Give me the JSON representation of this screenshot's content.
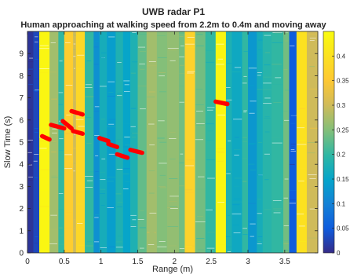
{
  "chart_data": {
    "type": "heatmap",
    "title": "UWB radar P1",
    "subtitle": "Human approaching at walking speed from 2.2m to 0.4m and moving away",
    "xlabel": "Range (m)",
    "ylabel": "Slow Time (s)",
    "xlim": [
      0,
      3.95
    ],
    "ylim": [
      0,
      10
    ],
    "x_ticks": [
      0,
      0.5,
      1,
      1.5,
      2,
      2.5,
      3,
      3.5
    ],
    "x_tick_labels": [
      "0",
      "0.5",
      "1",
      "1.5",
      "2",
      "2.5",
      "3",
      "3.5"
    ],
    "y_ticks": [
      0,
      1,
      2,
      3,
      4,
      5,
      6,
      7,
      8,
      9
    ],
    "y_tick_labels": [
      "0",
      "1",
      "2",
      "3",
      "4",
      "5",
      "6",
      "7",
      "8",
      "9"
    ],
    "colorbar": {
      "limits": [
        0,
        0.45
      ],
      "ticks": [
        0,
        0.05,
        0.1,
        0.15,
        0.2,
        0.25,
        0.3,
        0.35,
        0.4
      ],
      "tick_labels": [
        "0",
        "0.05",
        "0.1",
        "0.15",
        "0.2",
        "0.25",
        "0.3",
        "0.35",
        "0.4"
      ],
      "colormap": "parula"
    },
    "range_profile": [
      {
        "range": [
          0.0,
          0.08
        ],
        "value": 0.01
      },
      {
        "range": [
          0.08,
          0.16
        ],
        "value": 0.03
      },
      {
        "range": [
          0.16,
          0.3
        ],
        "value": 0.44
      },
      {
        "range": [
          0.3,
          0.42
        ],
        "value": 0.27
      },
      {
        "range": [
          0.42,
          0.5
        ],
        "value": 0.2
      },
      {
        "range": [
          0.5,
          0.62
        ],
        "value": 0.36
      },
      {
        "range": [
          0.62,
          0.66
        ],
        "value": 0.3
      },
      {
        "range": [
          0.66,
          0.78
        ],
        "value": 0.38
      },
      {
        "range": [
          0.78,
          0.9
        ],
        "value": 0.2
      },
      {
        "range": [
          0.9,
          0.98
        ],
        "value": 0.12
      },
      {
        "range": [
          0.98,
          1.08
        ],
        "value": 0.17
      },
      {
        "range": [
          1.08,
          1.2
        ],
        "value": 0.14
      },
      {
        "range": [
          1.2,
          1.3
        ],
        "value": 0.18
      },
      {
        "range": [
          1.3,
          1.4
        ],
        "value": 0.15
      },
      {
        "range": [
          1.4,
          1.5
        ],
        "value": 0.18
      },
      {
        "range": [
          1.5,
          1.62
        ],
        "value": 0.23
      },
      {
        "range": [
          1.62,
          1.76
        ],
        "value": 0.27
      },
      {
        "range": [
          1.76,
          1.9
        ],
        "value": 0.25
      },
      {
        "range": [
          1.9,
          2.06
        ],
        "value": 0.26
      },
      {
        "range": [
          2.06,
          2.14
        ],
        "value": 0.24
      },
      {
        "range": [
          2.14,
          2.28
        ],
        "value": 0.37
      },
      {
        "range": [
          2.28,
          2.42
        ],
        "value": 0.24
      },
      {
        "range": [
          2.42,
          2.56
        ],
        "value": 0.2
      },
      {
        "range": [
          2.56,
          2.7
        ],
        "value": 0.44
      },
      {
        "range": [
          2.7,
          2.78
        ],
        "value": 0.18
      },
      {
        "range": [
          2.78,
          2.92
        ],
        "value": 0.16
      },
      {
        "range": [
          2.92,
          3.0
        ],
        "value": 0.2
      },
      {
        "range": [
          3.0,
          3.12
        ],
        "value": 0.13
      },
      {
        "range": [
          3.12,
          3.2
        ],
        "value": 0.17
      },
      {
        "range": [
          3.2,
          3.32
        ],
        "value": 0.19
      },
      {
        "range": [
          3.32,
          3.48
        ],
        "value": 0.2
      },
      {
        "range": [
          3.48,
          3.56
        ],
        "value": 0.24
      },
      {
        "range": [
          3.56,
          3.66
        ],
        "value": 0.05
      },
      {
        "range": [
          3.66,
          3.8
        ],
        "value": 0.4
      },
      {
        "range": [
          3.8,
          3.95
        ],
        "value": 0.3
      }
    ],
    "detections": {
      "color": "#ff0000",
      "segments": [
        {
          "x": [
            0.2,
            0.3
          ],
          "y": [
            5.27,
            5.12
          ]
        },
        {
          "x": [
            0.32,
            0.5
          ],
          "y": [
            5.78,
            5.62
          ]
        },
        {
          "x": [
            0.48,
            0.6
          ],
          "y": [
            5.95,
            5.62
          ]
        },
        {
          "x": [
            0.6,
            0.75
          ],
          "y": [
            6.4,
            6.25
          ]
        },
        {
          "x": [
            0.62,
            0.75
          ],
          "y": [
            5.5,
            5.38
          ]
        },
        {
          "x": [
            0.98,
            1.1
          ],
          "y": [
            5.18,
            5.05
          ]
        },
        {
          "x": [
            1.1,
            1.22
          ],
          "y": [
            4.92,
            4.78
          ]
        },
        {
          "x": [
            1.22,
            1.36
          ],
          "y": [
            4.45,
            4.3
          ]
        },
        {
          "x": [
            1.4,
            1.56
          ],
          "y": [
            4.65,
            4.52
          ]
        },
        {
          "x": [
            2.56,
            2.72
          ],
          "y": [
            6.83,
            6.72
          ]
        }
      ]
    },
    "grid": false,
    "legend": "none"
  }
}
